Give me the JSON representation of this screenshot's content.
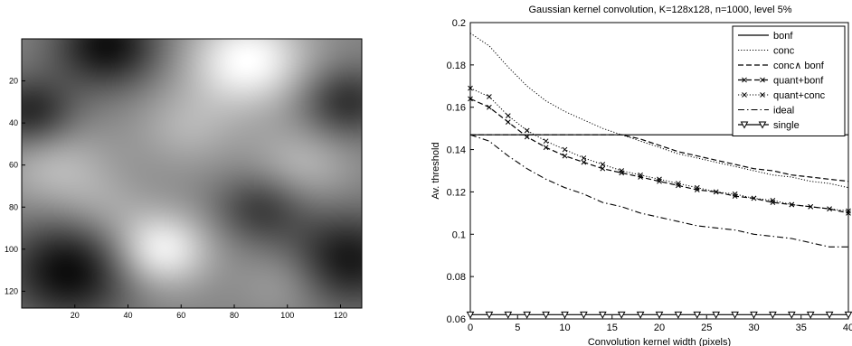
{
  "chart_data": [
    {
      "type": "heatmap",
      "title": "",
      "colormap": "gray",
      "xlim": [
        0,
        128
      ],
      "ylim": [
        0,
        128
      ],
      "xticks": [
        20,
        40,
        60,
        80,
        100,
        120
      ],
      "yticks": [
        20,
        40,
        60,
        80,
        100,
        120
      ],
      "xtick_labels": [
        "20",
        "40",
        "60",
        "80",
        "100",
        "120"
      ],
      "ytick_labels": [
        "20",
        "40",
        "60",
        "80",
        "100",
        "120"
      ],
      "blobs": [
        {
          "x": 85,
          "y": 10,
          "value": 1.0,
          "spread": 16
        },
        {
          "x": 52,
          "y": 100,
          "value": 0.95,
          "spread": 13
        },
        {
          "x": 18,
          "y": 110,
          "value": -1.0,
          "spread": 17
        },
        {
          "x": 32,
          "y": 3,
          "value": -0.95,
          "spread": 14
        },
        {
          "x": 3,
          "y": 35,
          "value": -0.8,
          "spread": 12
        },
        {
          "x": 122,
          "y": 30,
          "value": -0.7,
          "spread": 12
        },
        {
          "x": 122,
          "y": 105,
          "value": -0.9,
          "spread": 16
        },
        {
          "x": 90,
          "y": 80,
          "value": -0.6,
          "spread": 12
        },
        {
          "x": 12,
          "y": 60,
          "value": 0.45,
          "spread": 15
        },
        {
          "x": 105,
          "y": 60,
          "value": 0.4,
          "spread": 14
        },
        {
          "x": 62,
          "y": 42,
          "value": 0.35,
          "spread": 14
        },
        {
          "x": 30,
          "y": 80,
          "value": 0.25,
          "spread": 12
        },
        {
          "x": 100,
          "y": 115,
          "value": 0.3,
          "spread": 12
        }
      ]
    },
    {
      "type": "line",
      "title": "Gaussian kernel convolution, K=128x128, n=1000, level 5%",
      "xlabel": "Convolution kernel width (pixels)",
      "ylabel": "Av. threshold",
      "xlim": [
        0,
        40
      ],
      "ylim": [
        0.06,
        0.2
      ],
      "xticks": [
        0,
        5,
        10,
        15,
        20,
        25,
        30,
        35,
        40
      ],
      "yticks": [
        0.06,
        0.08,
        0.1,
        0.12,
        0.14,
        0.16,
        0.18,
        0.2
      ],
      "xtick_labels": [
        "0",
        "5",
        "10",
        "15",
        "20",
        "25",
        "30",
        "35",
        "40"
      ],
      "ytick_labels": [
        "0.06",
        "0.08",
        "0.1",
        "0.12",
        "0.14",
        "0.16",
        "0.18",
        "0.2"
      ],
      "legend_position": "top-right",
      "x": [
        0,
        2,
        4,
        6,
        8,
        10,
        12,
        14,
        16,
        18,
        20,
        22,
        24,
        26,
        28,
        30,
        32,
        34,
        36,
        38,
        40
      ],
      "series": [
        {
          "name": "bonf",
          "style": "solid",
          "marker": "none",
          "values": [
            0.147,
            0.147,
            0.147,
            0.147,
            0.147,
            0.147,
            0.147,
            0.147,
            0.147,
            0.147,
            0.147,
            0.147,
            0.147,
            0.147,
            0.147,
            0.147,
            0.147,
            0.147,
            0.147,
            0.147,
            0.147
          ]
        },
        {
          "name": "conc",
          "style": "dotted",
          "marker": "none",
          "values": [
            0.195,
            0.189,
            0.179,
            0.17,
            0.163,
            0.158,
            0.154,
            0.15,
            0.147,
            0.144,
            0.141,
            0.138,
            0.136,
            0.134,
            0.132,
            0.13,
            0.128,
            0.127,
            0.125,
            0.124,
            0.122
          ]
        },
        {
          "name": "conc∧ bonf",
          "style": "dashed",
          "marker": "none",
          "values": [
            0.147,
            0.147,
            0.147,
            0.147,
            0.147,
            0.147,
            0.147,
            0.147,
            0.147,
            0.145,
            0.142,
            0.139,
            0.137,
            0.135,
            0.133,
            0.131,
            0.13,
            0.128,
            0.127,
            0.126,
            0.125
          ]
        },
        {
          "name": "quant+bonf",
          "style": "dashed",
          "marker": "x",
          "values": [
            0.164,
            0.16,
            0.153,
            0.146,
            0.141,
            0.137,
            0.134,
            0.131,
            0.129,
            0.127,
            0.125,
            0.123,
            0.121,
            0.12,
            0.118,
            0.117,
            0.115,
            0.114,
            0.113,
            0.112,
            0.11
          ]
        },
        {
          "name": "quant+conc",
          "style": "dotted",
          "marker": "x",
          "values": [
            0.169,
            0.165,
            0.156,
            0.149,
            0.144,
            0.14,
            0.136,
            0.133,
            0.13,
            0.128,
            0.126,
            0.124,
            0.122,
            0.12,
            0.119,
            0.117,
            0.116,
            0.114,
            0.113,
            0.112,
            0.111
          ]
        },
        {
          "name": "ideal",
          "style": "dashdot",
          "marker": "none",
          "values": [
            0.147,
            0.144,
            0.137,
            0.131,
            0.126,
            0.122,
            0.119,
            0.115,
            0.113,
            0.11,
            0.108,
            0.106,
            0.104,
            0.103,
            0.102,
            0.1,
            0.099,
            0.098,
            0.096,
            0.094,
            0.094
          ]
        },
        {
          "name": "single",
          "style": "solid",
          "marker": "triangle-down",
          "values": [
            0.062,
            0.062,
            0.062,
            0.062,
            0.062,
            0.062,
            0.062,
            0.062,
            0.062,
            0.062,
            0.062,
            0.062,
            0.062,
            0.062,
            0.062,
            0.062,
            0.062,
            0.062,
            0.062,
            0.062,
            0.062
          ]
        }
      ]
    }
  ]
}
